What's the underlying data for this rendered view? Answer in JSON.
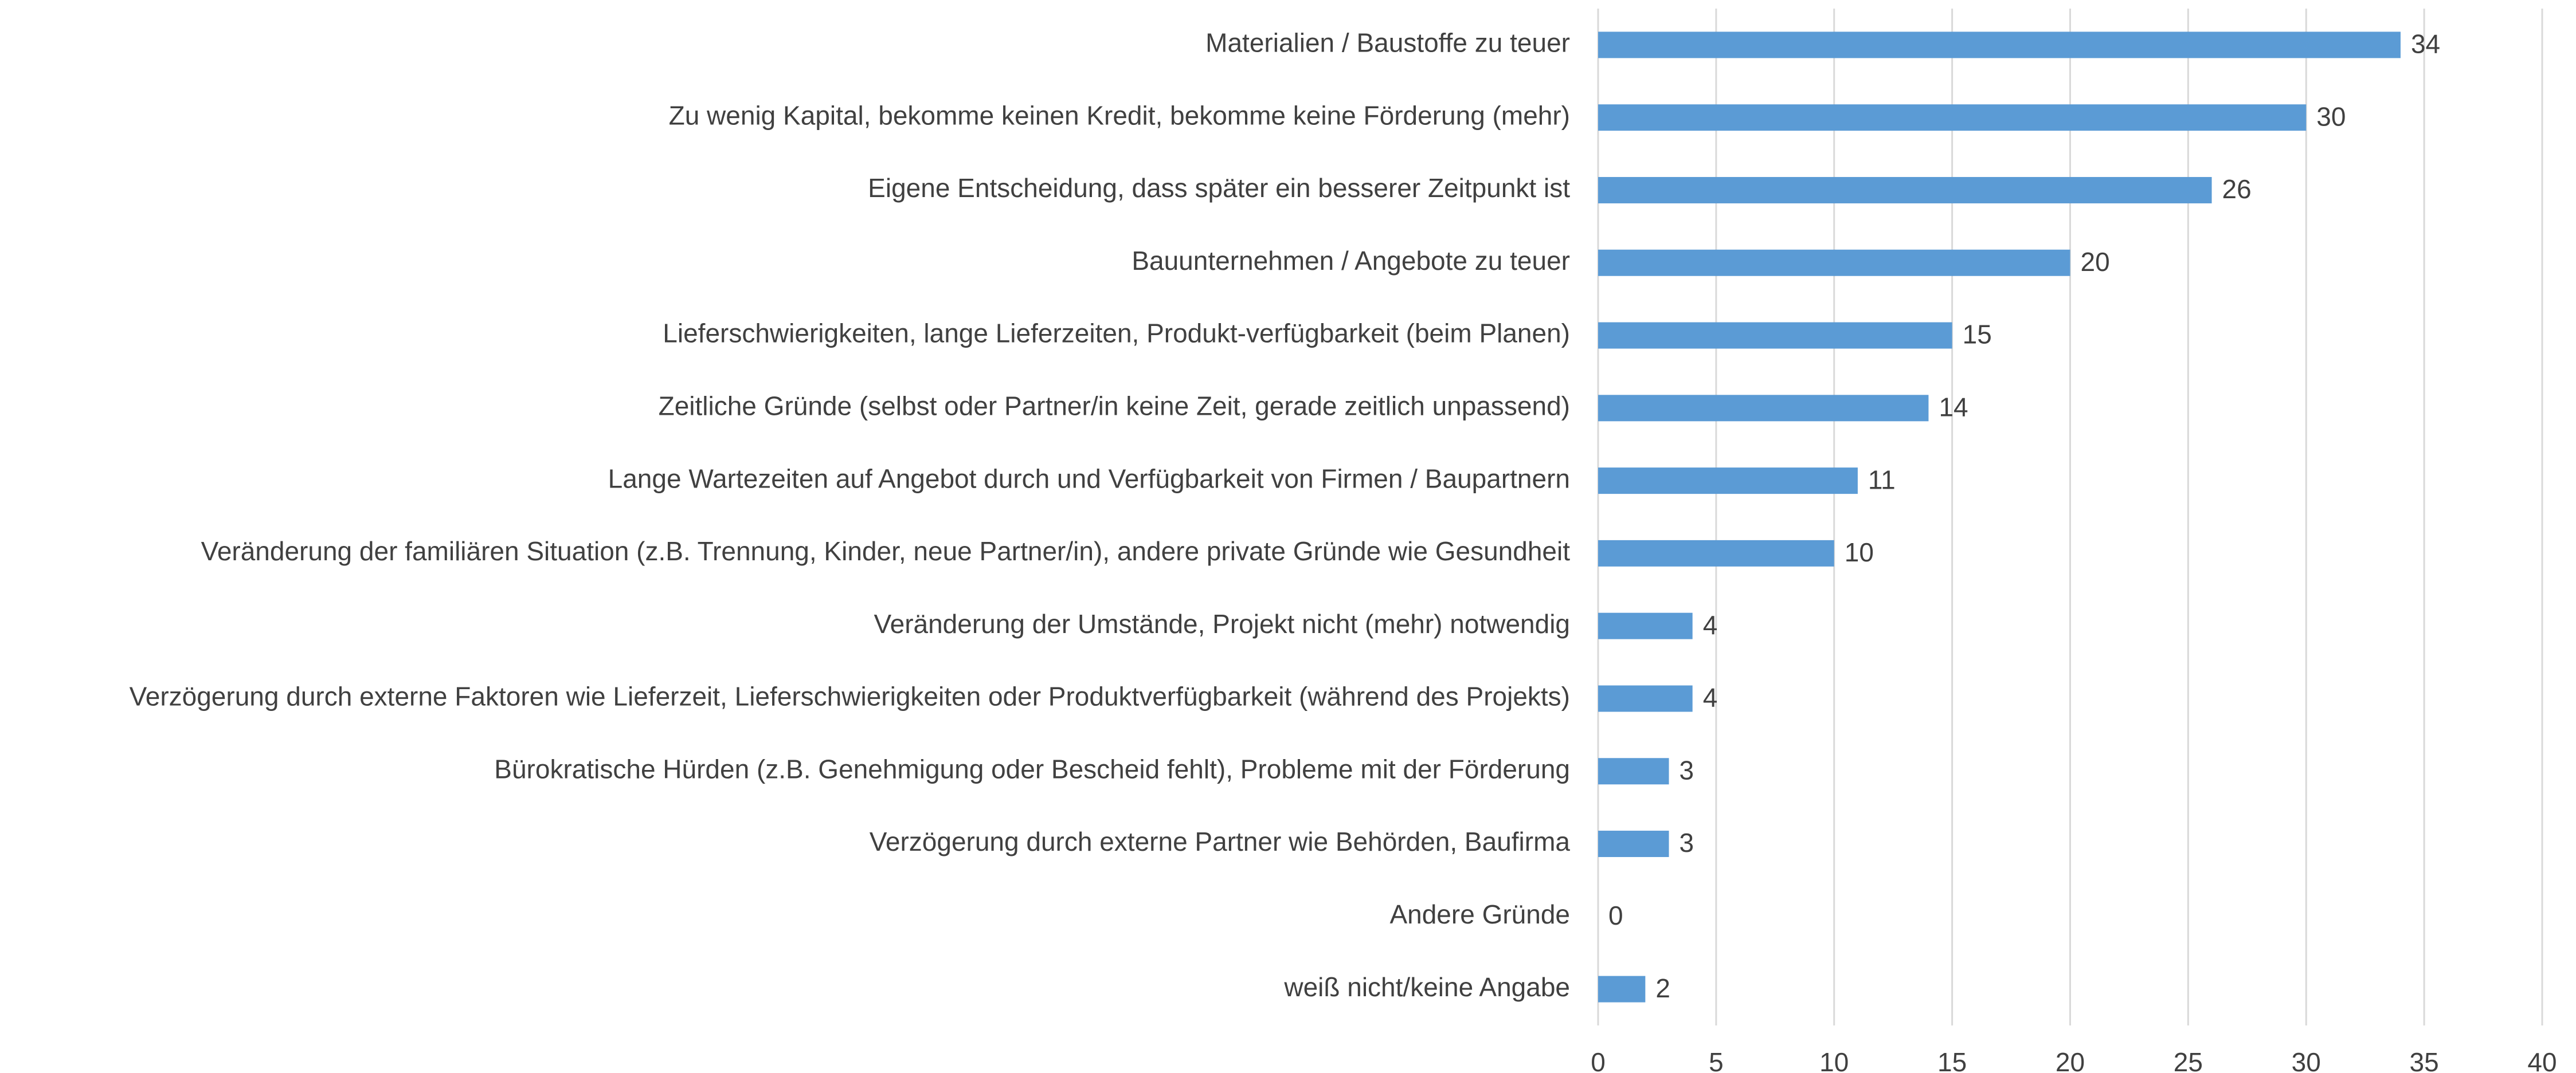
{
  "chart_data": {
    "type": "hbar",
    "categories": [
      "Materialien / Baustoffe zu teuer",
      "Zu wenig Kapital, bekomme keinen Kredit, bekomme keine Förderung (mehr)",
      "Eigene Entscheidung, dass später ein besserer Zeitpunkt ist",
      "Bauunternehmen / Angebote zu teuer",
      "Lieferschwierigkeiten, lange Lieferzeiten, Produkt-verfügbarkeit (beim Planen)",
      "Zeitliche Gründe (selbst oder Partner/in keine Zeit, gerade zeitlich unpassend)",
      "Lange Wartezeiten auf Angebot durch und Verfügbarkeit von Firmen / Baupartnern",
      "Veränderung der familiären Situation (z.B. Trennung, Kinder, neue Partner/in), andere private Gründe wie Gesundheit",
      "Veränderung der Umstände, Projekt nicht (mehr) notwendig",
      "Verzögerung durch externe Faktoren wie Lieferzeit, Lieferschwierigkeiten oder Produktverfügbarkeit (während des Projekts)",
      "Bürokratische Hürden (z.B. Genehmigung oder Bescheid fehlt), Probleme mit der Förderung",
      "Verzögerung durch externe Partner wie Behörden, Baufirma",
      "Andere Gründe",
      "weiß nicht/keine Angabe"
    ],
    "values": [
      34,
      30,
      26,
      20,
      15,
      14,
      11,
      10,
      4,
      4,
      3,
      3,
      0,
      2
    ],
    "color": "#5b9bd5",
    "xlim": [
      0,
      40
    ],
    "xticks": [
      0,
      5,
      10,
      15,
      20,
      25,
      30,
      35,
      40
    ],
    "grid": true
  }
}
